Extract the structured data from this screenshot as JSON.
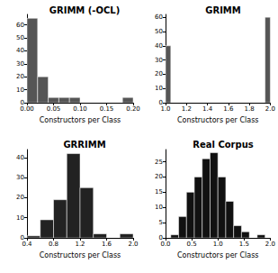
{
  "chart_data": [
    {
      "type": "histogram",
      "title": "GRIMM (-OCL)",
      "xlabel": "Constructors per Class",
      "bins": [
        0.0,
        0.02,
        0.04,
        0.06,
        0.08,
        0.1,
        0.12,
        0.14,
        0.16,
        0.18,
        0.2
      ],
      "counts": [
        65,
        20,
        4,
        4,
        4,
        0,
        0,
        0,
        0,
        4
      ],
      "color": "#555555",
      "xlim": [
        0,
        0.2
      ],
      "ylim": [
        0,
        68
      ],
      "xticks": [
        {
          "value": 0,
          "label": "0.00"
        },
        {
          "value": 0.05,
          "label": "0.05"
        },
        {
          "value": 0.1,
          "label": "0.10"
        },
        {
          "value": 0.15,
          "label": "0.15"
        },
        {
          "value": 0.2,
          "label": "0.20"
        }
      ],
      "yticks": [
        0,
        10,
        20,
        30,
        40,
        50,
        60
      ]
    },
    {
      "type": "histogram",
      "title": "GRIMM",
      "xlabel": "Constructors per Class",
      "bins": [
        1.0,
        1.05,
        1.1,
        1.15,
        1.2,
        1.25,
        1.3,
        1.35,
        1.4,
        1.45,
        1.5,
        1.55,
        1.6,
        1.65,
        1.7,
        1.75,
        1.8,
        1.85,
        1.9,
        1.95,
        2.0
      ],
      "counts": [
        40,
        0,
        0,
        0,
        0,
        0,
        0,
        0,
        0,
        0,
        0,
        0,
        0,
        0,
        0,
        0,
        0,
        0,
        0,
        60
      ],
      "color": "#555555",
      "xlim": [
        1,
        2
      ],
      "ylim": [
        0,
        62
      ],
      "xticks": [
        {
          "value": 1,
          "label": "1.0"
        },
        {
          "value": 1.2,
          "label": "1.2"
        },
        {
          "value": 1.4,
          "label": "1.4"
        },
        {
          "value": 1.6,
          "label": "1.6"
        },
        {
          "value": 1.8,
          "label": "1.8"
        },
        {
          "value": 2,
          "label": "2.0"
        }
      ],
      "yticks": [
        0,
        10,
        20,
        30,
        40,
        50,
        60
      ]
    },
    {
      "type": "histogram",
      "title": "GRRIMM",
      "xlabel": "Constructors per Class",
      "bins": [
        0.4,
        0.6,
        0.8,
        1.0,
        1.2,
        1.4,
        1.6,
        1.8,
        2.0
      ],
      "counts": [
        1,
        9,
        19,
        42,
        25,
        2,
        0,
        2
      ],
      "color": "#222222",
      "xlim": [
        0.4,
        2
      ],
      "ylim": [
        0,
        44
      ],
      "xticks": [
        {
          "value": 0.4,
          "label": "0.4"
        },
        {
          "value": 0.8,
          "label": "0.8"
        },
        {
          "value": 1.2,
          "label": "1.2"
        },
        {
          "value": 1.6,
          "label": "1.6"
        },
        {
          "value": 2,
          "label": "2.0"
        }
      ],
      "yticks": [
        0,
        10,
        20,
        30,
        40
      ]
    },
    {
      "type": "histogram",
      "title": "Real Corpus",
      "xlabel": "Constructors per Class",
      "bins": [
        0.1,
        0.25,
        0.4,
        0.55,
        0.7,
        0.85,
        1.0,
        1.15,
        1.3,
        1.45,
        1.6,
        1.75,
        1.9
      ],
      "counts": [
        1,
        7,
        15,
        20,
        26,
        28,
        20,
        12,
        4,
        2,
        0,
        1
      ],
      "color": "#111111",
      "xlim": [
        0,
        2
      ],
      "ylim": [
        0,
        29
      ],
      "xticks": [
        {
          "value": 0,
          "label": "0.0"
        },
        {
          "value": 0.5,
          "label": "0.5"
        },
        {
          "value": 1,
          "label": "1.0"
        },
        {
          "value": 1.5,
          "label": "1.5"
        },
        {
          "value": 2,
          "label": "2.0"
        }
      ],
      "yticks": [
        0,
        5,
        10,
        15,
        20,
        25
      ]
    }
  ]
}
